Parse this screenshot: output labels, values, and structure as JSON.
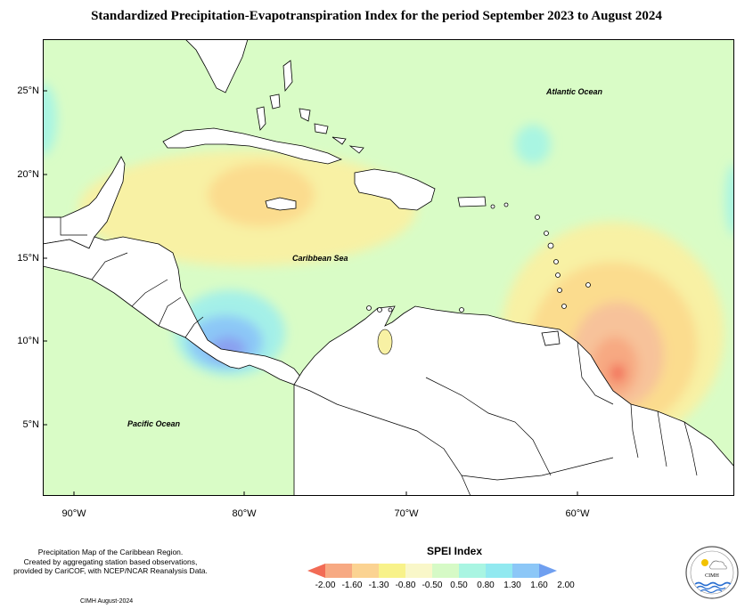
{
  "title": "Standardized Precipitation-Evapotranspiration Index for the period September 2023 to August 2024",
  "map": {
    "lat_labels": [
      "25°N",
      "20°N",
      "15°N",
      "10°N",
      "5°N"
    ],
    "lon_labels": [
      "90°W",
      "80°W",
      "70°W",
      "60°W"
    ],
    "places": {
      "atlantic": "Atlantic Ocean",
      "caribbean": "Caribbean Sea",
      "pacific": "Pacific Ocean"
    },
    "colors": {
      "background": "#d9fcc6",
      "land_line": "#000000"
    }
  },
  "credit": {
    "line1": "Precipitation Map of the Caribbean Region.",
    "line2": "Created by aggregating station based observations,",
    "line3": "provided by CariCOF, with NCEP/NCAR Reanalysis Data.",
    "line4": "CIMH August-2024"
  },
  "legend": {
    "title": "SPEI Index",
    "ticks": [
      "-2.00",
      "-1.60",
      "-1.30",
      "-0.80",
      "-0.50",
      "0.50",
      "0.80",
      "1.30",
      "1.60",
      "2.00"
    ],
    "colors": [
      "#f26b55",
      "#f7a982",
      "#fbd392",
      "#f8f28a",
      "#f9f7c9",
      "#d6fac6",
      "#a9f5e2",
      "#92e9f0",
      "#8cc7f7",
      "#6f9ff0"
    ]
  },
  "logo": {
    "text": "CIMH"
  }
}
